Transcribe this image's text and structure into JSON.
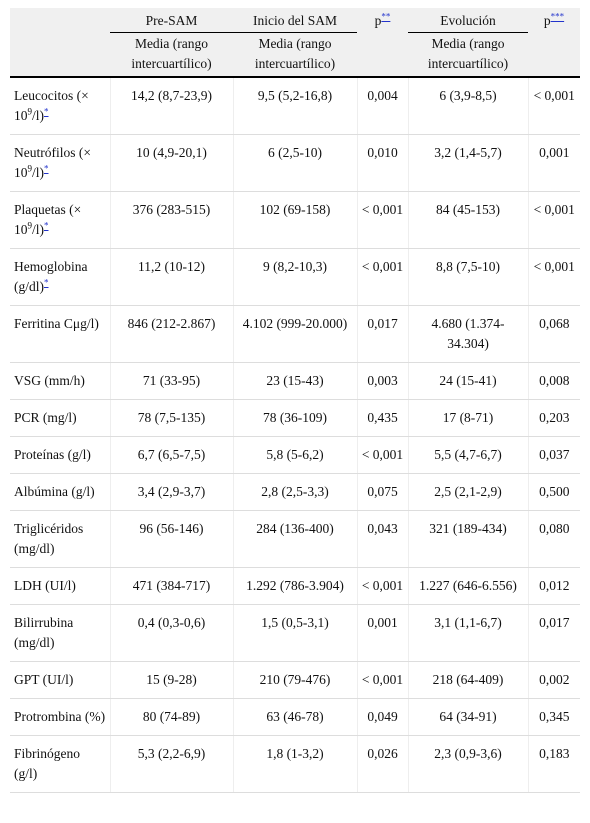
{
  "table": {
    "header": {
      "columns": [
        "Pre-SAM",
        "Inicio del SAM",
        "p",
        "Evolución",
        "p"
      ],
      "column_notes": [
        null,
        null,
        "**",
        null,
        "***"
      ],
      "subheader": [
        "Media (rango intercuartílico)",
        "Media (rango intercuartílico)",
        "Media (rango intercuartílico)"
      ]
    },
    "rows": [
      {
        "label": "Leucocitos (× 10",
        "sup": "9",
        "unit": "/l)",
        "note": "*",
        "cells": [
          "14,2 (8,7-23,9)",
          "9,5 (5,2-16,8)",
          "0,004",
          "6 (3,9-8,5)",
          "< 0,001"
        ]
      },
      {
        "label": "Neutrófilos (× 10",
        "sup": "9",
        "unit": "/l)",
        "note": "*",
        "cells": [
          "10 (4,9-20,1)",
          "6 (2,5-10)",
          "0,010",
          "3,2 (1,4-5,7)",
          "0,001"
        ]
      },
      {
        "label": "Plaquetas (× 10",
        "sup": "9",
        "unit": "/l)",
        "note": "*",
        "cells": [
          "376 (283-515)",
          "102 (69-158)",
          "< 0,001",
          "84 (45-153)",
          "< 0,001"
        ]
      },
      {
        "label": "Hemoglobina (g/dl)",
        "note": "*",
        "cells": [
          "11,2 (10-12)",
          "9 (8,2-10,3)",
          "< 0,001",
          "8,8 (7,5-10)",
          "< 0,001"
        ]
      },
      {
        "label": "Ferritina Cμg/l)",
        "cells": [
          "846 (212-2.867)",
          "4.102 (999-20.000)",
          "0,017",
          "4.680 (1.374-34.304)",
          "0,068"
        ]
      },
      {
        "label": "VSG (mm/h)",
        "cells": [
          "71 (33-95)",
          "23 (15-43)",
          "0,003",
          "24 (15-41)",
          "0,008"
        ]
      },
      {
        "label": "PCR (mg/l)",
        "cells": [
          "78 (7,5-135)",
          "78 (36-109)",
          "0,435",
          "17 (8-71)",
          "0,203"
        ]
      },
      {
        "label": "Proteínas (g/l)",
        "cells": [
          "6,7 (6,5-7,5)",
          "5,8 (5-6,2)",
          "< 0,001",
          "5,5 (4,7-6,7)",
          "0,037"
        ]
      },
      {
        "label": "Albúmina (g/l)",
        "cells": [
          "3,4 (2,9-3,7)",
          "2,8 (2,5-3,3)",
          "0,075",
          "2,5 (2,1-2,9)",
          "0,500"
        ]
      },
      {
        "label": "Triglicéridos (mg/dl)",
        "cells": [
          "96 (56-146)",
          "284 (136-400)",
          "0,043",
          "321 (189-434)",
          "0,080"
        ]
      },
      {
        "label": "LDH (UI/l)",
        "cells": [
          "471 (384-717)",
          "1.292 (786-3.904)",
          "< 0,001",
          "1.227 (646-6.556)",
          "0,012"
        ]
      },
      {
        "label": "Bilirrubina (mg/dl)",
        "cells": [
          "0,4 (0,3-0,6)",
          "1,5 (0,5-3,1)",
          "0,001",
          "3,1 (1,1-6,7)",
          "0,017"
        ]
      },
      {
        "label": "GPT (UI/l)",
        "cells": [
          "15 (9-28)",
          "210 (79-476)",
          "< 0,001",
          "218 (64-409)",
          "0,002"
        ]
      },
      {
        "label": "Protrombina (%)",
        "cells": [
          "80 (74-89)",
          "63 (46-78)",
          "0,049",
          "64 (34-91)",
          "0,345"
        ]
      },
      {
        "label": "Fibrinógeno (g/l)",
        "cells": [
          "5,3 (2,2-6,9)",
          "1,8 (1-3,2)",
          "0,026",
          "2,3 (0,9-3,6)",
          "0,183"
        ]
      }
    ]
  }
}
